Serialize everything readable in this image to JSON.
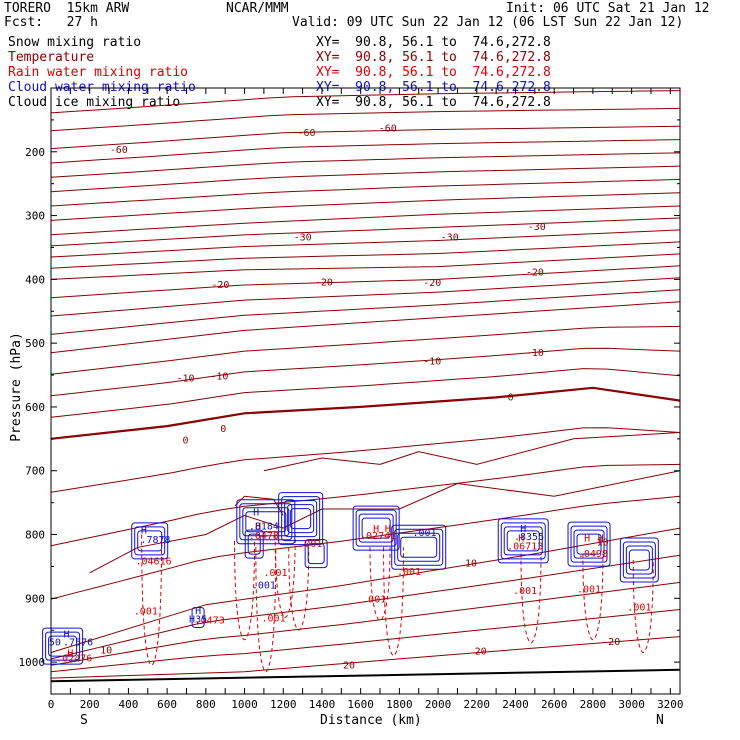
{
  "header": {
    "model": "TORERO  15km ARW",
    "org": "NCAR/MMM",
    "init": "Init: 06 UTC Sat 21 Jan 12",
    "fcst": "Fcst:   27 h",
    "valid": "Valid: 09 UTC Sun 22 Jan 12 (06 LST Sun 22 Jan 12)"
  },
  "legend": [
    {
      "label": "Snow mixing ratio",
      "xy": "XY=  90.8, 56.1 to  74.6,272.8",
      "color": "#000000"
    },
    {
      "label": "Temperature",
      "xy": "XY=  90.8, 56.1 to  74.6,272.8",
      "color": "#8b0000"
    },
    {
      "label": "Rain water mixing ratio",
      "xy": "XY=  90.8, 56.1 to  74.6,272.8",
      "color": "#e00000"
    },
    {
      "label": "Cloud water mixing ratio",
      "xy": "XY=  90.8, 56.1 to  74.6,272.8",
      "color": "#1010d0"
    },
    {
      "label": "Cloud ice mixing ratio",
      "xy": "XY=  90.8, 56.1 to  74.6,272.8",
      "color": "#000000"
    }
  ],
  "chart_data": {
    "type": "contour",
    "xlabel": "Distance (km)",
    "ylabel": "Pressure (hPa)",
    "xlim": [
      0,
      3250
    ],
    "ylim": [
      1050,
      100
    ],
    "x_ticks": [
      0,
      100,
      200,
      300,
      400,
      500,
      600,
      700,
      800,
      900,
      1000,
      1100,
      1200,
      1300,
      1400,
      1500,
      1600,
      1700,
      1800,
      1900,
      2000,
      2100,
      2200,
      2300,
      2400,
      2500,
      2600,
      2700,
      2800,
      2900,
      3000,
      3100,
      3200
    ],
    "x_tick_labels": [
      "0",
      "200",
      "400",
      "600",
      "800",
      "1000",
      "1200",
      "1400",
      "1600",
      "1800",
      "2000",
      "2200",
      "2400",
      "2600",
      "2800",
      "3000",
      "3200"
    ],
    "y_tick_labels": [
      "200",
      "300",
      "400",
      "500",
      "600",
      "700",
      "800",
      "900",
      "1000"
    ],
    "y_ticks": [
      200,
      300,
      400,
      500,
      600,
      700,
      800,
      900,
      1000
    ],
    "end_labels": {
      "left": "S",
      "right": "N"
    },
    "temperature_isotherms": [
      {
        "label": "-60",
        "points": [
          [
            0,
            195
          ],
          [
            500,
            185
          ],
          [
            1200,
            170
          ],
          [
            2000,
            165
          ],
          [
            3250,
            160
          ]
        ]
      },
      {
        "label": "-30",
        "points": [
          [
            0,
            330
          ],
          [
            1000,
            312
          ],
          [
            2000,
            298
          ],
          [
            3250,
            285
          ]
        ]
      },
      {
        "label": "-20",
        "points": [
          [
            0,
            400
          ],
          [
            1000,
            385
          ],
          [
            2000,
            380
          ],
          [
            3250,
            360
          ]
        ]
      },
      {
        "label": "-10",
        "points": [
          [
            0,
            515
          ],
          [
            1000,
            480
          ],
          [
            2000,
            460
          ],
          [
            3250,
            435
          ]
        ]
      },
      {
        "label": "0",
        "points": [
          [
            0,
            650
          ],
          [
            600,
            630
          ],
          [
            1000,
            610
          ],
          [
            1600,
            600
          ],
          [
            2300,
            585
          ],
          [
            2800,
            570
          ],
          [
            3250,
            590
          ]
        ]
      },
      {
        "label": "10",
        "points": [
          [
            0,
            985
          ],
          [
            800,
            910
          ],
          [
            1500,
            880
          ],
          [
            2500,
            830
          ],
          [
            3250,
            790
          ]
        ]
      },
      {
        "label": "20",
        "points": [
          [
            0,
            1025
          ],
          [
            1000,
            1015
          ],
          [
            2000,
            990
          ],
          [
            3250,
            960
          ]
        ]
      }
    ],
    "temperature_labels": [
      {
        "text": "-60",
        "x": 350,
        "p": 196
      },
      {
        "text": "-60",
        "x": 1320,
        "p": 169
      },
      {
        "text": "-60",
        "x": 1740,
        "p": 162
      },
      {
        "text": "-30",
        "x": 1300,
        "p": 333
      },
      {
        "text": "-30",
        "x": 2060,
        "p": 333
      },
      {
        "text": "-30",
        "x": 2510,
        "p": 316
      },
      {
        "text": "-20",
        "x": 875,
        "p": 407
      },
      {
        "text": "-20",
        "x": 1410,
        "p": 403
      },
      {
        "text": "-20",
        "x": 1970,
        "p": 404
      },
      {
        "text": "-20",
        "x": 2500,
        "p": 388
      },
      {
        "text": "-10",
        "x": 695,
        "p": 554
      },
      {
        "text": "-10",
        "x": 870,
        "p": 551
      },
      {
        "text": "-10",
        "x": 1970,
        "p": 527
      },
      {
        "text": "-10",
        "x": 2500,
        "p": 514
      },
      {
        "text": "0",
        "x": 695,
        "p": 651
      },
      {
        "text": "0",
        "x": 890,
        "p": 633
      },
      {
        "text": "0",
        "x": 2375,
        "p": 584
      },
      {
        "text": "10",
        "x": 285,
        "p": 980
      },
      {
        "text": "10",
        "x": 2170,
        "p": 844
      },
      {
        "text": "10",
        "x": 2850,
        "p": 811
      },
      {
        "text": "20",
        "x": 1540,
        "p": 1004
      },
      {
        "text": "20",
        "x": 2220,
        "p": 982
      },
      {
        "text": "20",
        "x": 2910,
        "p": 967
      }
    ],
    "rain_labels": [
      {
        "text": ".001",
        "x": 490,
        "p": 919
      },
      {
        "text": ".001",
        "x": 1150,
        "p": 930
      },
      {
        "text": ".001",
        "x": 1160,
        "p": 859
      },
      {
        "text": ".001",
        "x": 1340,
        "p": 813
      },
      {
        "text": ".001",
        "x": 1670,
        "p": 900
      },
      {
        "text": ".001",
        "x": 1850,
        "p": 857
      },
      {
        "text": ".001",
        "x": 2450,
        "p": 887
      },
      {
        "text": ".001",
        "x": 2780,
        "p": 885
      },
      {
        "text": ".001",
        "x": 3040,
        "p": 913
      },
      {
        "text": ".04616",
        "x": 530,
        "p": 841
      },
      {
        "text": ".0473",
        "x": 820,
        "p": 933
      },
      {
        "text": ".02476",
        "x": 120,
        "p": 993
      },
      {
        "text": ".0478",
        "x": 1100,
        "p": 801
      },
      {
        "text": ".02741",
        "x": 1690,
        "p": 801
      },
      {
        "text": ".06713",
        "x": 2450,
        "p": 817
      },
      {
        "text": ".0498",
        "x": 2800,
        "p": 829
      },
      {
        "text": "H",
        "x": 100,
        "p": 985
      },
      {
        "text": "H",
        "x": 1680,
        "p": 790
      },
      {
        "text": "H",
        "x": 1740,
        "p": 790
      },
      {
        "text": "H",
        "x": 1070,
        "p": 786
      },
      {
        "text": "H",
        "x": 2430,
        "p": 805
      },
      {
        "text": "H",
        "x": 2770,
        "p": 805
      },
      {
        "text": "H",
        "x": 2840,
        "p": 805
      }
    ],
    "cloud_water_labels": [
      {
        "text": "H",
        "x": 480,
        "p": 792
      },
      {
        "text": ".7878",
        "x": 540,
        "p": 807
      },
      {
        "text": "H",
        "x": 1060,
        "p": 764
      },
      {
        "text": ".8184",
        "x": 1100,
        "p": 786
      },
      {
        "text": "H",
        "x": 80,
        "p": 955
      },
      {
        "text": ".7576",
        "x": 140,
        "p": 968
      },
      {
        "text": "50",
        "x": 20,
        "p": 968
      },
      {
        "text": "H",
        "x": 760,
        "p": 918
      },
      {
        "text": "H35",
        "x": 760,
        "p": 932
      },
      {
        "text": ".001",
        "x": 1100,
        "p": 878
      },
      {
        "text": ".001",
        "x": 1930,
        "p": 796
      },
      {
        "text": "H",
        "x": 2440,
        "p": 790
      },
      {
        "text": ".8355",
        "x": 2470,
        "p": 802
      }
    ]
  }
}
